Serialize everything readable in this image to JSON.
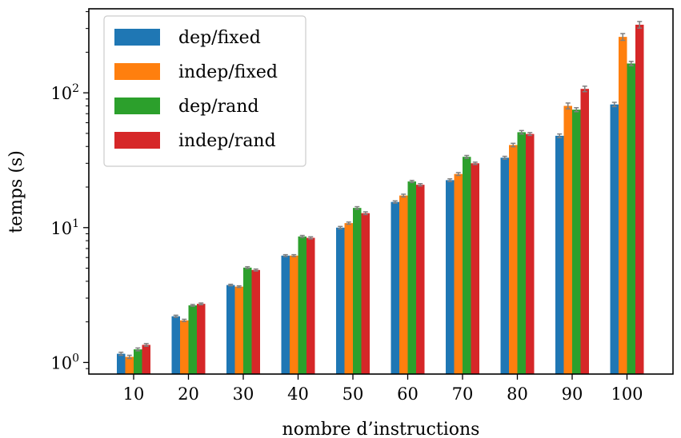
{
  "chart_data": {
    "type": "bar",
    "title": "",
    "xlabel": "nombre d’instructions",
    "ylabel": "temps (s)",
    "yscale": "log",
    "ylim": [
      0.82,
      420
    ],
    "yticks": [
      1,
      10,
      100
    ],
    "ytick_labels": [
      {
        "base": "10",
        "exp": "0"
      },
      {
        "base": "10",
        "exp": "1"
      },
      {
        "base": "10",
        "exp": "2"
      }
    ],
    "categories": [
      "10",
      "20",
      "30",
      "40",
      "50",
      "60",
      "70",
      "80",
      "90",
      "100"
    ],
    "legend_position": "top-left",
    "grid": false,
    "series": [
      {
        "name": "dep/fixed",
        "color": "#1f77b4",
        "values": [
          1.16,
          2.2,
          3.75,
          6.2,
          10.0,
          15.5,
          22.5,
          33.0,
          48.0,
          82.0
        ],
        "errors": [
          0.03,
          0.04,
          0.05,
          0.1,
          0.2,
          0.3,
          0.5,
          0.8,
          1.5,
          3.0
        ]
      },
      {
        "name": "indep/fixed",
        "color": "#ff7f0e",
        "values": [
          1.1,
          2.05,
          3.65,
          6.2,
          10.8,
          17.3,
          25.0,
          41.0,
          80.0,
          260.0
        ],
        "errors": [
          0.03,
          0.04,
          0.05,
          0.1,
          0.2,
          0.4,
          0.6,
          1.2,
          4.0,
          15.0
        ]
      },
      {
        "name": "dep/rand",
        "color": "#2ca02c",
        "values": [
          1.25,
          2.65,
          5.05,
          8.6,
          14.0,
          22.0,
          33.5,
          51.0,
          75.0,
          165.0
        ],
        "errors": [
          0.03,
          0.04,
          0.08,
          0.15,
          0.3,
          0.4,
          0.8,
          1.5,
          2.5,
          6.0
        ]
      },
      {
        "name": "indep/rand",
        "color": "#d62728",
        "values": [
          1.35,
          2.72,
          4.85,
          8.4,
          12.8,
          20.8,
          30.0,
          49.5,
          107.0,
          320.0
        ],
        "errors": [
          0.03,
          0.04,
          0.08,
          0.15,
          0.3,
          0.4,
          0.6,
          1.2,
          5.0,
          18.0
        ]
      }
    ]
  }
}
